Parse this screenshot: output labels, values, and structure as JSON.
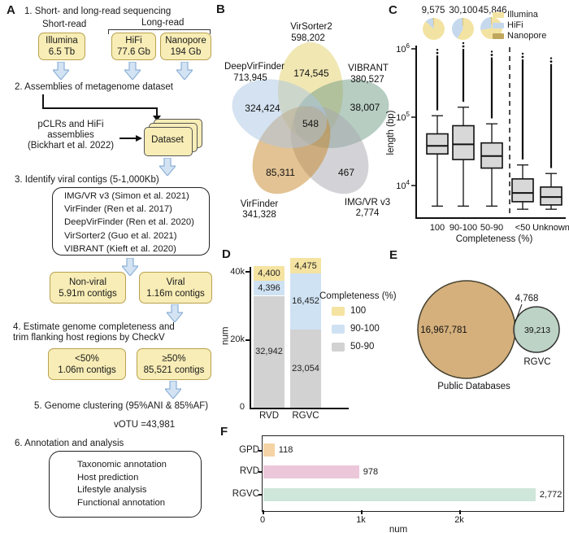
{
  "panelA": {
    "label": "A",
    "step1": "1. Short- and long-read sequencing",
    "short_read": "Short-read",
    "long_read": "Long-read",
    "illumina_name": "Illumina",
    "illumina_amount": "6.5 Tb",
    "hifi_name": "HiFi",
    "hifi_amount": "77.6 Gb",
    "nanopore_name": "Nanopore",
    "nanopore_amount": "194 Gb",
    "step2": "2. Assemblies of metagenome dataset",
    "pclr_line1": "pCLRs and HiFi",
    "pclr_line2": "assemblies",
    "pclr_line3": "(Bickhart et al. 2022)",
    "dataset": "Dataset",
    "step3": "3. Identify viral contigs (5-1,000Kb)",
    "tools": [
      "IMG/VR v3 (Simon et al. 2021)",
      "VirFinder (Ren et al. 2017)",
      "DeepVirFinder (Ren et al. 2020)",
      "VirSorter2 (Guo et al. 2021)",
      "VIBRANT (Kieft  et al. 2020)"
    ],
    "nonviral_name": "Non-viral",
    "nonviral_amount": "5.91m contigs",
    "viral_name": "Viral",
    "viral_amount": "1.16m contigs",
    "step4_line1": "4. Estimate genome completeness and",
    "step4_line2": "trim flanking host regions by CheckV",
    "lt50_name": "<50%",
    "lt50_amount": "1.06m contigs",
    "ge50_name": "≥50%",
    "ge50_amount": "85,521 contigs",
    "step5": "5. Genome clustering (95%ANI & 85%AF)",
    "votu": "vOTU =43,981",
    "step6": "6. Annotation and analysis",
    "annotations": [
      "Taxonomic annotation",
      "Host prediction",
      "Lifestyle analysis",
      "Functional annotation"
    ]
  },
  "panels": {
    "b_label": "B",
    "c_label": "C",
    "d_label": "D",
    "e_label": "E",
    "f_label": "F"
  },
  "chart_data": {
    "panelB": {
      "type": "venn5",
      "sets": [
        {
          "name": "VirSorter2",
          "size": "598,202"
        },
        {
          "name": "VIBRANT",
          "size": "380,527"
        },
        {
          "name": "IMG/VR v3",
          "size": "2,774"
        },
        {
          "name": "VirFinder",
          "size": "341,328"
        },
        {
          "name": "DeepVirFinder",
          "size": "713,945"
        }
      ],
      "regions": {
        "top": "174,545",
        "left": "324,424",
        "right": "38,007",
        "center": "548",
        "bottom_left": "85,311",
        "bottom_right": "467"
      }
    },
    "panelC": {
      "type": "box",
      "counts": [
        "9,575",
        "30,100",
        "45,846"
      ],
      "pies": [
        {
          "Illumina": 87,
          "HiFi": 12,
          "Nanopore": 1
        },
        {
          "Illumina": 58,
          "HiFi": 41,
          "Nanopore": 1
        },
        {
          "Illumina": 72,
          "HiFi": 27,
          "Nanopore": 1
        }
      ],
      "legend": [
        "Illumina",
        "HiFi",
        "Nanopore"
      ],
      "ylabel": "length (bp)",
      "xlabel": "Completeness (%)",
      "categories": [
        "100",
        "90-100",
        "50-90",
        "<50",
        "Unknown"
      ],
      "ytick_exponents": [
        4,
        5,
        6
      ],
      "ylim": [
        3300,
        1300000
      ],
      "boxes": [
        {
          "cat": "100",
          "wlo": 5000,
          "q1": 29000,
          "med": 38000,
          "q3": 57000,
          "whi": 105000,
          "omax": 800000
        },
        {
          "cat": "90-100",
          "wlo": 5000,
          "q1": 24000,
          "med": 40000,
          "q3": 75000,
          "whi": 140000,
          "omax": 1000000
        },
        {
          "cat": "50-90",
          "wlo": 5000,
          "q1": 18000,
          "med": 27000,
          "q3": 42000,
          "whi": 80000,
          "omax": 750000
        },
        {
          "cat": "<50",
          "wlo": 4500,
          "q1": 5800,
          "med": 7800,
          "q3": 12500,
          "whi": 20000,
          "omax": 700000
        },
        {
          "cat": "Unknown",
          "wlo": 4500,
          "q1": 5200,
          "med": 6800,
          "q3": 9500,
          "whi": 15000,
          "omax": 600000
        }
      ]
    },
    "panelD": {
      "type": "stacked-bar",
      "categories": [
        "RVD",
        "RGVC"
      ],
      "series": [
        {
          "name": "50-90",
          "key": "d_50",
          "values": [
            32942,
            23054
          ],
          "labels": [
            "32,942",
            "23,054"
          ]
        },
        {
          "name": "90-100",
          "key": "d_90",
          "values": [
            4396,
            16452
          ],
          "labels": [
            "4,396",
            "16,452"
          ]
        },
        {
          "name": "100",
          "key": "d_100",
          "values": [
            4400,
            4475
          ],
          "labels": [
            "4,400",
            "4,475"
          ]
        }
      ],
      "legend_title": "Completeness (%)",
      "legend": [
        {
          "label": "100",
          "key": "d_100"
        },
        {
          "label": "90-100",
          "key": "d_90"
        },
        {
          "label": "50-90",
          "key": "d_50"
        }
      ],
      "ylabel": "num",
      "yticks": [
        "0",
        "20k",
        "40k"
      ],
      "ylim": [
        0,
        44000
      ]
    },
    "panelE": {
      "type": "venn2",
      "big": {
        "label": "Public Databases",
        "value": "16,967,781"
      },
      "small": {
        "label": "RGVC",
        "value": "39,213"
      },
      "overlap": "4,768"
    },
    "panelF": {
      "type": "hbar",
      "categories": [
        "GPD",
        "RVD",
        "RGVC"
      ],
      "values": [
        118,
        978,
        2772
      ],
      "labels": [
        "118",
        "978",
        "2,772"
      ],
      "color_keys": [
        "f_gpd",
        "f_rvd",
        "f_rgvc"
      ],
      "xticks": [
        "0",
        "1k",
        "2k"
      ],
      "xlabel": "num",
      "xlim": [
        0,
        3000
      ]
    }
  },
  "colors": {
    "box_yellow": "#f8edb6",
    "box_border": "#b9a14e",
    "arrow_fill": "#d3e3f3",
    "arrow_stroke": "#8cb0d6",
    "illumina": "#f3e3a2",
    "hifi": "#c5d8ec",
    "nanopore": "#bfa75e",
    "venn_virsorter2": "#e3d374",
    "venn_vibrant": "#6f9c86",
    "venn_imgvr": "#a8a8b0",
    "venn_virfinder": "#c8872a",
    "venn_deepvirfinder": "#a9c6e4",
    "d_100": "#f5e3a1",
    "d_90": "#cfe2f3",
    "d_50": "#d2d2d2",
    "e_big": "#d5b07c",
    "e_small": "#b7cfc1",
    "f_gpd": "#f6d3a4",
    "f_rvd": "#ecc7d9",
    "f_rgvc": "#cfe6da",
    "boxplot_fill": "#d8d8d8"
  }
}
